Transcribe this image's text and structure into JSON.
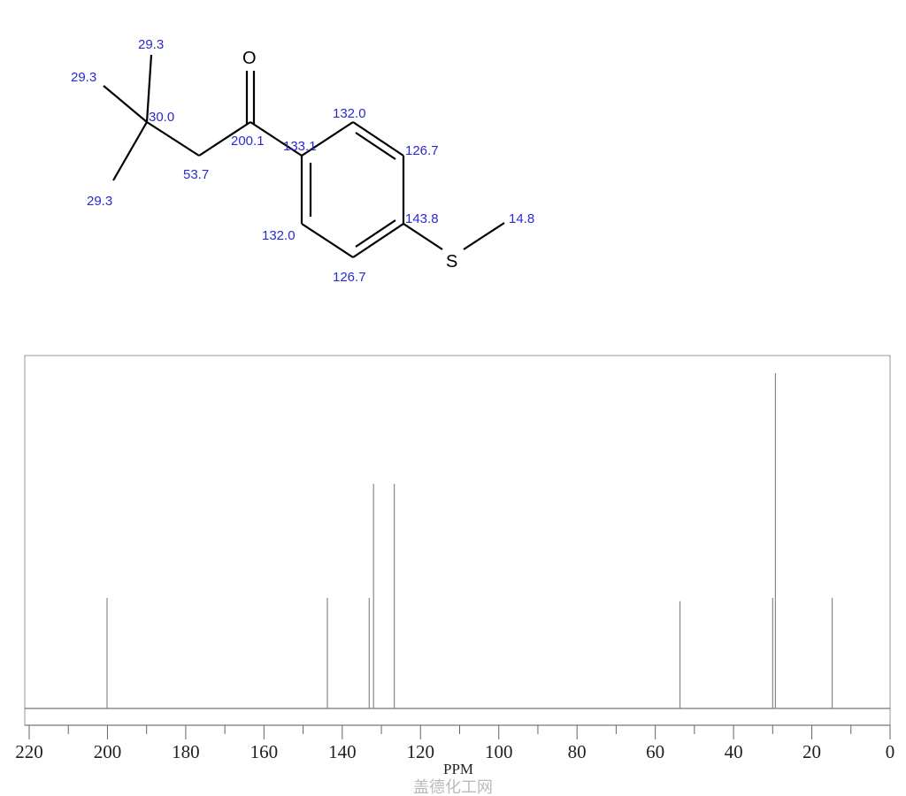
{
  "molecule": {
    "atoms": {
      "oxygen": "O",
      "sulfur": "S"
    },
    "shift_labels": [
      {
        "id": "me-top",
        "text": "29.3"
      },
      {
        "id": "me-left",
        "text": "29.3"
      },
      {
        "id": "me-bottom",
        "text": "29.3"
      },
      {
        "id": "cq",
        "text": "30.0"
      },
      {
        "id": "ch2",
        "text": "53.7"
      },
      {
        "id": "co",
        "text": "200.1"
      },
      {
        "id": "c1",
        "text": "133.1"
      },
      {
        "id": "c2",
        "text": "132.0"
      },
      {
        "id": "c3",
        "text": "126.7"
      },
      {
        "id": "c4",
        "text": "143.8"
      },
      {
        "id": "c5",
        "text": "126.7"
      },
      {
        "id": "c6",
        "text": "132.0"
      },
      {
        "id": "sme",
        "text": "14.8"
      }
    ]
  },
  "chart_data": {
    "type": "bar",
    "title": "",
    "xlabel": "PPM",
    "ylabel": "",
    "xlim": [
      220,
      0
    ],
    "x_reversed": true,
    "xticks_major": [
      220,
      200,
      180,
      160,
      140,
      120,
      100,
      80,
      60,
      40,
      20,
      0
    ],
    "xticks_minor": [
      210,
      190,
      170,
      150,
      130,
      110,
      90,
      70,
      50,
      30,
      10
    ],
    "grid": false,
    "peaks": [
      {
        "ppm": 200.1,
        "intensity": 0.33
      },
      {
        "ppm": 143.8,
        "intensity": 0.33
      },
      {
        "ppm": 133.1,
        "intensity": 0.33
      },
      {
        "ppm": 132.0,
        "intensity": 0.67
      },
      {
        "ppm": 126.7,
        "intensity": 0.67
      },
      {
        "ppm": 53.7,
        "intensity": 0.32
      },
      {
        "ppm": 30.0,
        "intensity": 0.33
      },
      {
        "ppm": 29.3,
        "intensity": 1.0
      },
      {
        "ppm": 14.8,
        "intensity": 0.33
      }
    ],
    "peak_color": "#888888"
  },
  "watermark": "盖德化工网"
}
